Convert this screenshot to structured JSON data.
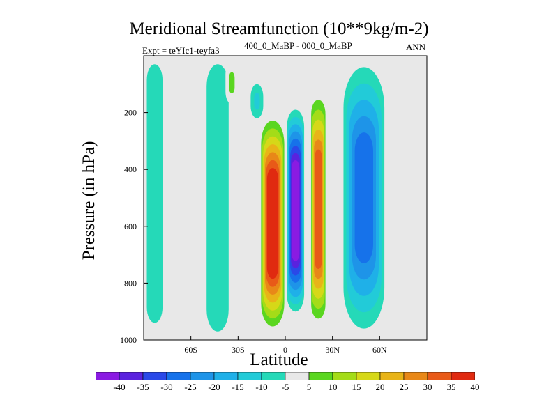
{
  "chart_data": {
    "type": "heatmap",
    "title": "Meridional Streamfunction (10**9kg/m-2)",
    "subtitle_left": "Expt = teYIc1-teyfa3",
    "subtitle_center": "400_0_MaBP - 000_0_MaBP",
    "subtitle_right": "ANN",
    "xlabel": "Latitude",
    "ylabel": "Pressure (in hPa)",
    "xlim": [
      -90,
      90
    ],
    "ylim": [
      1000,
      0
    ],
    "x_ticks": [
      {
        "value": -60,
        "label": "60S"
      },
      {
        "value": -30,
        "label": "30S"
      },
      {
        "value": 0,
        "label": "0"
      },
      {
        "value": 30,
        "label": "30N"
      },
      {
        "value": 60,
        "label": "60N"
      }
    ],
    "y_ticks": [
      {
        "value": 200,
        "label": "200"
      },
      {
        "value": 400,
        "label": "400"
      },
      {
        "value": 600,
        "label": "600"
      },
      {
        "value": 800,
        "label": "800"
      },
      {
        "value": 1000,
        "label": "1000"
      }
    ],
    "colorbar": {
      "levels": [
        "-40",
        "-35",
        "-30",
        "-25",
        "-20",
        "-15",
        "-10",
        "-5",
        "5",
        "10",
        "15",
        "20",
        "25",
        "30",
        "35",
        "40"
      ],
      "colors": [
        "#8a1be2",
        "#5a22de",
        "#2a49e8",
        "#1672ea",
        "#1e94e8",
        "#1fb0e8",
        "#22cbd8",
        "#25d9b8",
        "#e8e8e8",
        "#5ad620",
        "#a4dc18",
        "#d6d818",
        "#e8b418",
        "#e88818",
        "#e85a18",
        "#e02a10"
      ]
    },
    "fields": [
      {
        "name": "lobe-far-south",
        "level": -5,
        "lat": [
          -88,
          -78
        ],
        "p": [
          30,
          940
        ]
      },
      {
        "name": "lobe-south-weak",
        "level": -5,
        "lat": [
          -50,
          -36
        ],
        "p": [
          30,
          970
        ]
      },
      {
        "name": "cell-south-upper-pos",
        "level": 10,
        "lat": [
          -38,
          -30
        ],
        "p": [
          20,
          170
        ]
      },
      {
        "name": "cell-south-upper-neg",
        "level": -10,
        "lat": [
          -22,
          -14
        ],
        "p": [
          100,
          220
        ]
      },
      {
        "name": "hadley-south-pos",
        "level": 40,
        "lat": [
          -16,
          0
        ],
        "p": [
          200,
          980
        ]
      },
      {
        "name": "hadley-core-neg",
        "level": -40,
        "lat": [
          1,
          12
        ],
        "p": [
          190,
          900
        ]
      },
      {
        "name": "hadley-north-pos",
        "level": 35,
        "lat": [
          16,
          26
        ],
        "p": [
          120,
          960
        ]
      },
      {
        "name": "ferrel-north-neg",
        "level": -25,
        "lat": [
          37,
          63
        ],
        "p": [
          40,
          960
        ]
      }
    ]
  }
}
